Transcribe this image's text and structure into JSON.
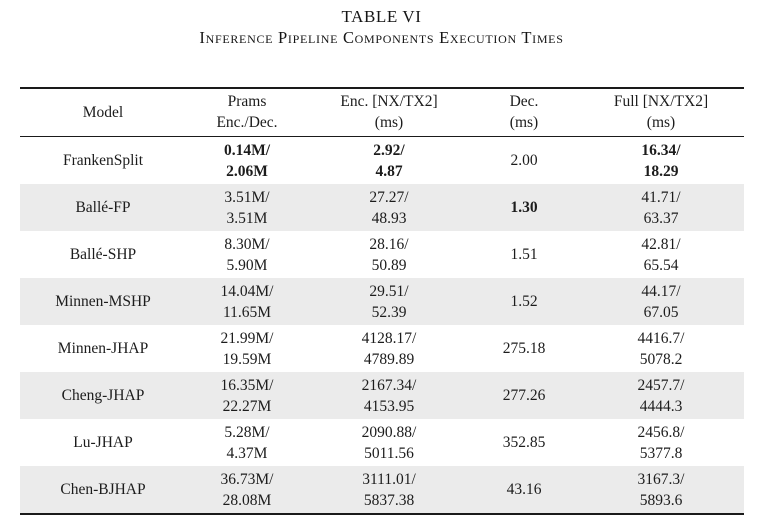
{
  "caption": {
    "title": "TABLE VI",
    "subtitle": "Inference Pipeline Components Execution Times"
  },
  "colors": {
    "row_shade": "#ebebeb",
    "text": "#1c1c1c"
  },
  "table": {
    "headers": {
      "model": {
        "line1": "Model",
        "line2": ""
      },
      "prams": {
        "line1": "Prams",
        "line2": "Enc./Dec."
      },
      "enc": {
        "line1": "Enc. [NX/TX2]",
        "line2": "(ms)"
      },
      "dec": {
        "line1": "Dec.",
        "line2": "(ms)"
      },
      "full": {
        "line1": "Full [NX/TX2]",
        "line2": "(ms)"
      }
    },
    "rows": [
      {
        "model": "FrankenSplit",
        "prams": [
          "0.14M/",
          "2.06M"
        ],
        "enc": [
          "2.92/",
          "4.87"
        ],
        "dec": "2.00",
        "full": [
          "16.34/",
          "18.29"
        ],
        "bold_cells": "prams,enc,full",
        "shaded": false
      },
      {
        "model": "Ballé-FP",
        "prams": [
          "3.51M/",
          "3.51M"
        ],
        "enc": [
          "27.27/",
          "48.93"
        ],
        "dec": "1.30",
        "full": [
          "41.71/",
          "63.37"
        ],
        "bold_cells": "dec",
        "shaded": true
      },
      {
        "model": "Ballé-SHP",
        "prams": [
          "8.30M/",
          "5.90M"
        ],
        "enc": [
          "28.16/",
          "50.89"
        ],
        "dec": "1.51",
        "full": [
          "42.81/",
          "65.54"
        ],
        "bold_cells": "",
        "shaded": false
      },
      {
        "model": "Minnen-MSHP",
        "prams": [
          "14.04M/",
          "11.65M"
        ],
        "enc": [
          "29.51/",
          "52.39"
        ],
        "dec": "1.52",
        "full": [
          "44.17/",
          "67.05"
        ],
        "bold_cells": "",
        "shaded": true
      },
      {
        "model": "Minnen-JHAP",
        "prams": [
          "21.99M/",
          "19.59M"
        ],
        "enc": [
          "4128.17/",
          "4789.89"
        ],
        "dec": "275.18",
        "full": [
          "4416.7/",
          "5078.2"
        ],
        "bold_cells": "",
        "shaded": false
      },
      {
        "model": "Cheng-JHAP",
        "prams": [
          "16.35M/",
          "22.27M"
        ],
        "enc": [
          "2167.34/",
          "4153.95"
        ],
        "dec": "277.26",
        "full": [
          "2457.7/",
          "4444.3"
        ],
        "bold_cells": "",
        "shaded": true
      },
      {
        "model": "Lu-JHAP",
        "prams": [
          "5.28M/",
          "4.37M"
        ],
        "enc": [
          "2090.88/",
          "5011.56"
        ],
        "dec": "352.85",
        "full": [
          "2456.8/",
          "5377.8"
        ],
        "bold_cells": "",
        "shaded": false
      },
      {
        "model": "Chen-BJHAP",
        "prams": [
          "36.73M/",
          "28.08M"
        ],
        "enc": [
          "3111.01/",
          "5837.38"
        ],
        "dec": "43.16",
        "full": [
          "3167.3/",
          "5893.6"
        ],
        "bold_cells": "",
        "shaded": true
      }
    ]
  }
}
